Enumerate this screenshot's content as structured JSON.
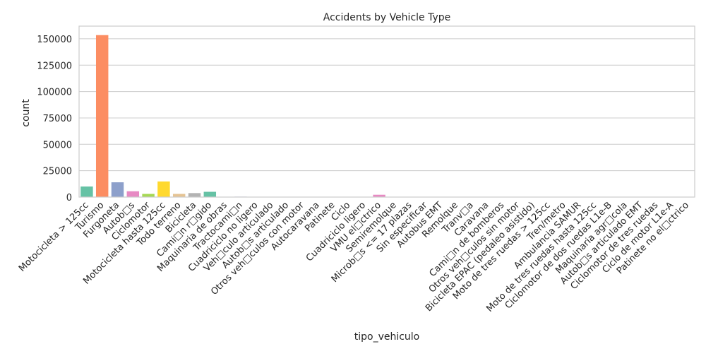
{
  "chart_data": {
    "type": "bar",
    "title": "Accidents by Vehicle Type",
    "xlabel": "tipo_vehiculo",
    "ylabel": "count",
    "ylim": [
      0,
      162000
    ],
    "yticks": [
      0,
      25000,
      50000,
      75000,
      100000,
      125000,
      150000
    ],
    "ytick_labels": [
      "0",
      "25000",
      "50000",
      "75000",
      "100000",
      "125000",
      "150000"
    ],
    "grid": true,
    "legend": "none",
    "categories": [
      "Motocicleta > 125cc",
      "Turismo",
      "Furgoneta",
      "Autob□s",
      "Ciclomotor",
      "Motocicleta hasta 125cc",
      "Todo terreno",
      "Bicicleta",
      "Cami□n r□gido",
      "Maquinaria de obras",
      "Tractocami□n",
      "Cuadriciclo no ligero",
      "Veh□culo articulado",
      "Autob□s articulado",
      "Otros veh□culos con motor",
      "Autocaravana",
      "Patinete",
      "Ciclo",
      "Cuadriciclo ligero",
      "VMU el□ctrico",
      "Semiremolque",
      "Microb□s <= 17 plazas",
      "Sin especificar",
      "Autobus EMT",
      "Remolque",
      "Tranv□a",
      "Caravana",
      "Cami□n de bomberos",
      "Otros veh□culos sin motor",
      "Bicicleta EPAC (pedaleo asistido)",
      "Moto de tres ruedas > 125cc",
      "Tren/metro",
      "Ambulancia SAMUR",
      "Moto de tres ruedas hasta 125cc",
      "Ciclomotor de dos ruedas L1e-B",
      "Maquinaria agr□cola",
      "Autob□s articulado EMT",
      "Ciclomotor de tres ruedas",
      "Ciclo de motor L1e-A",
      "Patinete no el□ctrico"
    ],
    "values": [
      10000,
      153500,
      14000,
      5500,
      3000,
      14800,
      3000,
      3800,
      5000,
      300,
      400,
      200,
      200,
      250,
      150,
      100,
      150,
      100,
      100,
      2200,
      100,
      100,
      100,
      100,
      100,
      50,
      50,
      50,
      50,
      100,
      50,
      30,
      50,
      50,
      30,
      30,
      30,
      20,
      20,
      20
    ],
    "colors": [
      "#66c2a5",
      "#fc8d62",
      "#8da0cb",
      "#e78ac3",
      "#a6d854",
      "#ffd92f",
      "#e5c494",
      "#b3b3b3"
    ]
  }
}
